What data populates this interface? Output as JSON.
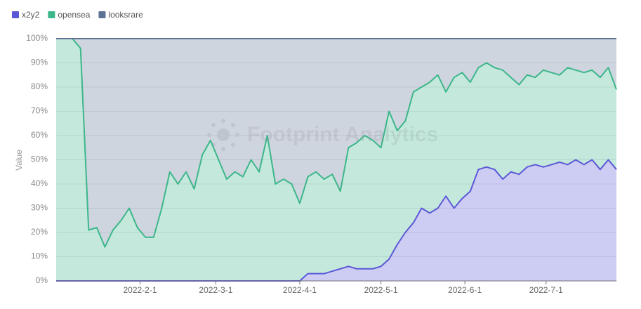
{
  "chart_data": {
    "type": "stacked_area",
    "y_label": "Value",
    "watermark": "Footprint Analytics",
    "x": [
      "2022-1-1",
      "2022-1-4",
      "2022-1-7",
      "2022-1-10",
      "2022-1-13",
      "2022-1-16",
      "2022-1-19",
      "2022-1-22",
      "2022-1-25",
      "2022-1-28",
      "2022-1-31",
      "2022-2-3",
      "2022-2-6",
      "2022-2-9",
      "2022-2-12",
      "2022-2-15",
      "2022-2-18",
      "2022-2-21",
      "2022-2-24",
      "2022-2-27",
      "2022-3-2",
      "2022-3-5",
      "2022-3-8",
      "2022-3-11",
      "2022-3-14",
      "2022-3-17",
      "2022-3-20",
      "2022-3-23",
      "2022-3-26",
      "2022-3-29",
      "2022-4-1",
      "2022-4-4",
      "2022-4-7",
      "2022-4-10",
      "2022-4-13",
      "2022-4-16",
      "2022-4-19",
      "2022-4-22",
      "2022-4-25",
      "2022-4-28",
      "2022-5-1",
      "2022-5-4",
      "2022-5-7",
      "2022-5-10",
      "2022-5-13",
      "2022-5-16",
      "2022-5-19",
      "2022-5-22",
      "2022-5-25",
      "2022-5-28",
      "2022-5-31",
      "2022-6-3",
      "2022-6-6",
      "2022-6-9",
      "2022-6-12",
      "2022-6-15",
      "2022-6-18",
      "2022-6-21",
      "2022-6-24",
      "2022-6-27",
      "2022-6-30",
      "2022-7-3",
      "2022-7-6",
      "2022-7-9",
      "2022-7-12",
      "2022-7-15",
      "2022-7-18",
      "2022-7-21",
      "2022-7-24",
      "2022-7-27"
    ],
    "series": [
      {
        "name": "x2y2",
        "color": "#5b58d6",
        "values": [
          0,
          0,
          0,
          0,
          0,
          0,
          0,
          0,
          0,
          0,
          0,
          0,
          0,
          0,
          0,
          0,
          0,
          0,
          0,
          0,
          0,
          0,
          0,
          0,
          0,
          0,
          0,
          0,
          0,
          0,
          0,
          3,
          3,
          3,
          4,
          5,
          6,
          5,
          5,
          5,
          6,
          9,
          15,
          20,
          24,
          30,
          28,
          30,
          35,
          30,
          34,
          37,
          46,
          47,
          46,
          42,
          45,
          44,
          47,
          48,
          47,
          48,
          49,
          48,
          50,
          48,
          50,
          46,
          50,
          46
        ]
      },
      {
        "name": "opensea",
        "color": "#3db68a",
        "values": [
          100,
          100,
          100,
          96,
          21,
          22,
          14,
          21,
          25,
          30,
          22,
          18,
          18,
          30,
          45,
          40,
          45,
          38,
          52,
          58,
          50,
          42,
          45,
          43,
          50,
          45,
          60,
          40,
          42,
          40,
          32,
          40,
          42,
          39,
          40,
          32,
          49,
          52,
          55,
          53,
          49,
          61,
          47,
          46,
          54,
          50,
          54,
          55,
          43,
          54,
          52,
          45,
          42,
          43,
          42,
          45,
          39,
          37,
          38,
          36,
          40,
          38,
          36,
          40,
          37,
          38,
          37,
          38,
          38,
          33
        ]
      },
      {
        "name": "looksrare",
        "color": "#5d7395",
        "values": [
          0,
          0,
          0,
          4,
          79,
          78,
          86,
          79,
          75,
          70,
          78,
          82,
          82,
          70,
          55,
          60,
          55,
          62,
          48,
          42,
          50,
          58,
          55,
          57,
          50,
          55,
          40,
          60,
          58,
          60,
          68,
          57,
          55,
          58,
          56,
          63,
          45,
          43,
          40,
          42,
          45,
          30,
          38,
          34,
          22,
          20,
          18,
          15,
          22,
          16,
          14,
          18,
          12,
          10,
          12,
          13,
          16,
          19,
          15,
          16,
          13,
          14,
          15,
          12,
          13,
          14,
          13,
          16,
          12,
          21
        ]
      }
    ],
    "xlim": [
      "2022-1-1",
      "2022-7-27"
    ],
    "xticks": [
      "2022-2-1",
      "2022-3-1",
      "2022-4-1",
      "2022-5-1",
      "2022-6-1",
      "2022-7-1"
    ],
    "ylim": [
      0,
      100
    ],
    "yticks": [
      {
        "value": 0,
        "label": "0%"
      },
      {
        "value": 10,
        "label": "10%"
      },
      {
        "value": 20,
        "label": "20%"
      },
      {
        "value": 30,
        "label": "30%"
      },
      {
        "value": 40,
        "label": "40%"
      },
      {
        "value": 50,
        "label": "50%"
      },
      {
        "value": 60,
        "label": "60%"
      },
      {
        "value": 70,
        "label": "70%"
      },
      {
        "value": 80,
        "label": "80%"
      },
      {
        "value": 90,
        "label": "90%"
      },
      {
        "value": 100,
        "label": "100%"
      }
    ],
    "grid": true,
    "legend": "top-left"
  }
}
